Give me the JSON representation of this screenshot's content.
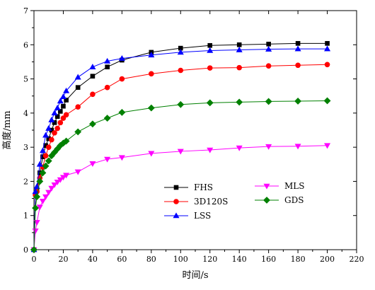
{
  "chart_data": {
    "type": "line",
    "title": "",
    "xlabel": "时间/s",
    "ylabel": "高度/mm",
    "xlim": [
      0,
      220
    ],
    "ylim": [
      0,
      7
    ],
    "xticks": [
      0,
      20,
      40,
      60,
      80,
      100,
      120,
      140,
      160,
      180,
      200,
      220
    ],
    "yticks": [
      0,
      1,
      2,
      3,
      4,
      5,
      6,
      7
    ],
    "grid": false,
    "legend_position": "bottom-right",
    "series": [
      {
        "name": "FHS",
        "color": "#000000",
        "marker": "square",
        "x": [
          0,
          1,
          2,
          4,
          6,
          8,
          10,
          12,
          14,
          16,
          18,
          20,
          22,
          30,
          40,
          50,
          60,
          80,
          100,
          120,
          140,
          160,
          180,
          200
        ],
        "y": [
          0,
          1.62,
          1.75,
          2.25,
          2.72,
          3.05,
          3.25,
          3.5,
          3.72,
          3.9,
          4.05,
          4.2,
          4.38,
          4.75,
          5.08,
          5.35,
          5.55,
          5.78,
          5.9,
          5.98,
          6.0,
          6.02,
          6.04,
          6.04
        ]
      },
      {
        "name": "3D120S",
        "color": "#ff0000",
        "marker": "circle",
        "x": [
          0,
          1,
          2,
          4,
          6,
          8,
          10,
          12,
          14,
          16,
          18,
          20,
          22,
          30,
          40,
          50,
          60,
          80,
          100,
          120,
          140,
          160,
          180,
          200
        ],
        "y": [
          0,
          1.6,
          1.7,
          2.1,
          2.42,
          2.75,
          3.0,
          3.22,
          3.42,
          3.55,
          3.72,
          3.85,
          3.95,
          4.18,
          4.55,
          4.75,
          5.0,
          5.15,
          5.25,
          5.32,
          5.33,
          5.38,
          5.4,
          5.42
        ]
      },
      {
        "name": "LSS",
        "color": "#0000ff",
        "marker": "triangle-up",
        "x": [
          0,
          1,
          2,
          4,
          6,
          8,
          10,
          12,
          14,
          16,
          18,
          20,
          22,
          30,
          40,
          50,
          60,
          80,
          100,
          120,
          140,
          160,
          180,
          200
        ],
        "y": [
          0,
          1.7,
          1.85,
          2.5,
          2.9,
          3.35,
          3.55,
          3.8,
          4.0,
          4.15,
          4.35,
          4.48,
          4.65,
          5.05,
          5.35,
          5.52,
          5.6,
          5.7,
          5.78,
          5.83,
          5.85,
          5.87,
          5.88,
          5.88
        ]
      },
      {
        "name": "MLS",
        "color": "#ff00ff",
        "marker": "triangle-down",
        "x": [
          0,
          1,
          2,
          4,
          6,
          8,
          10,
          12,
          14,
          16,
          18,
          20,
          22,
          30,
          40,
          50,
          60,
          80,
          100,
          120,
          140,
          160,
          180,
          200
        ],
        "y": [
          0,
          0.55,
          0.8,
          1.25,
          1.42,
          1.55,
          1.68,
          1.8,
          1.9,
          1.98,
          2.05,
          2.12,
          2.18,
          2.28,
          2.52,
          2.65,
          2.7,
          2.82,
          2.88,
          2.92,
          2.98,
          3.02,
          3.03,
          3.05
        ]
      },
      {
        "name": "GDS",
        "color": "#008000",
        "marker": "diamond",
        "x": [
          0,
          1,
          2,
          4,
          6,
          8,
          10,
          12,
          14,
          16,
          18,
          20,
          22,
          30,
          40,
          50,
          60,
          80,
          100,
          120,
          140,
          160,
          180,
          200
        ],
        "y": [
          0,
          1.22,
          1.55,
          2.0,
          2.25,
          2.45,
          2.6,
          2.75,
          2.85,
          2.95,
          3.05,
          3.12,
          3.18,
          3.45,
          3.68,
          3.85,
          4.02,
          4.15,
          4.25,
          4.3,
          4.32,
          4.34,
          4.35,
          4.36
        ]
      }
    ]
  }
}
